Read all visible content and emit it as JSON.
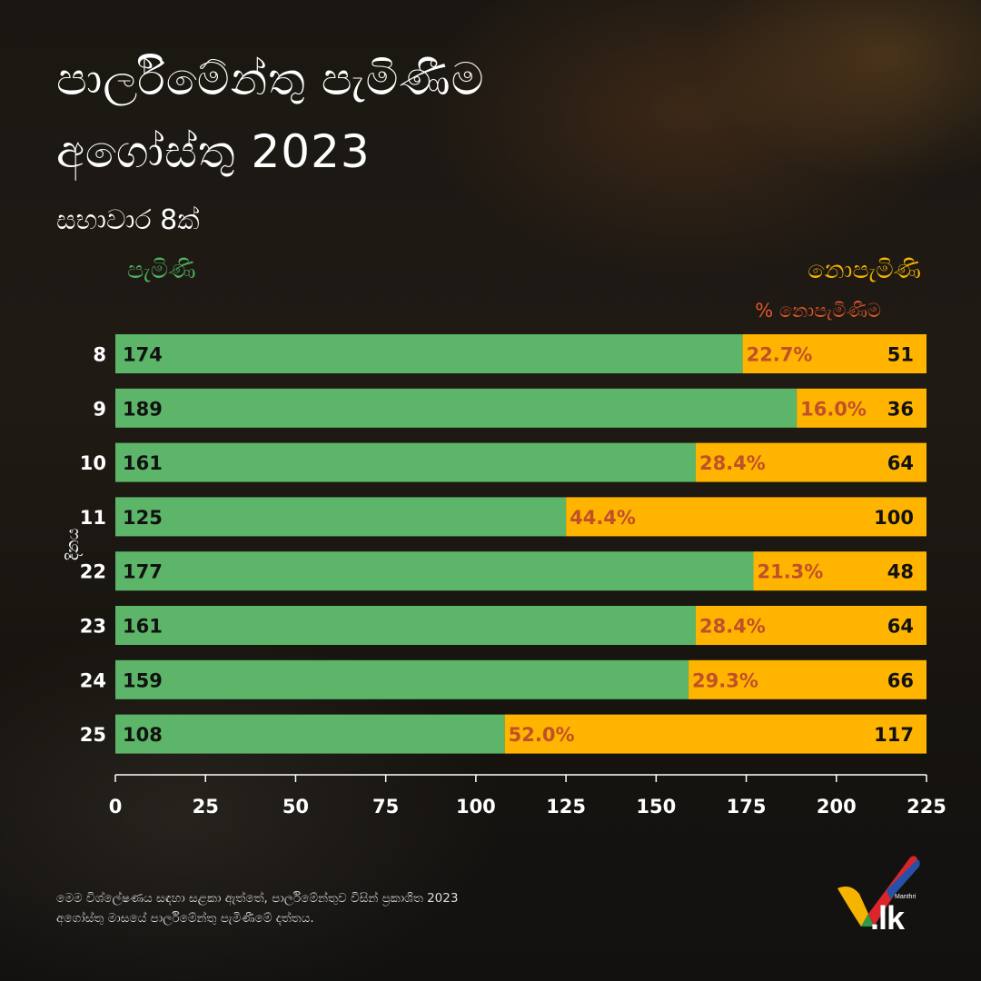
{
  "header": {
    "title_line1": "පාර්ලිමේන්තු පැමිණීම",
    "title_line2": "අගෝස්තු 2023",
    "subtitle": "සභාවාර 8ක්"
  },
  "legend": {
    "present": "පැමිණි",
    "absent": "නොපැමිණි",
    "absent_pct": "% නොපැමිණීම"
  },
  "chart_data": {
    "type": "bar",
    "orientation": "horizontal",
    "stacked": true,
    "ylabel": "දිනය",
    "categories": [
      "8",
      "9",
      "10",
      "11",
      "22",
      "23",
      "24",
      "25"
    ],
    "series": [
      {
        "name": "පැමිණි",
        "color": "#5cb568",
        "values": [
          174,
          189,
          161,
          125,
          177,
          161,
          159,
          108
        ]
      },
      {
        "name": "නොපැමිණි",
        "color": "#ffb400",
        "values": [
          51,
          36,
          64,
          100,
          48,
          64,
          66,
          117
        ]
      }
    ],
    "absent_percent_labels": [
      "22.7%",
      "16.0%",
      "28.4%",
      "44.4%",
      "21.3%",
      "28.4%",
      "29.3%",
      "52.0%"
    ],
    "xlim": [
      0,
      225
    ],
    "xticks": [
      0,
      25,
      50,
      75,
      100,
      125,
      150,
      175,
      200,
      225
    ],
    "colors": {
      "percent_label": "#c0502a",
      "value_label": "#111111",
      "axis": "#ffffff"
    }
  },
  "footer": {
    "note_line1": "මෙම විශ්ලේෂණය සඳහා සළකා ඇත්තේ, පාර්ලිමේන්තුව විසින් ප්‍රකාශිත 2023",
    "note_line2": "අගෝස්තු මාසයේ පාර්ලිමේන්තු පැමිණීමේ දත්තය."
  },
  "logo": {
    "brand": ".lk",
    "small": "Manthri",
    "icon": "checkmark-logo-icon"
  }
}
